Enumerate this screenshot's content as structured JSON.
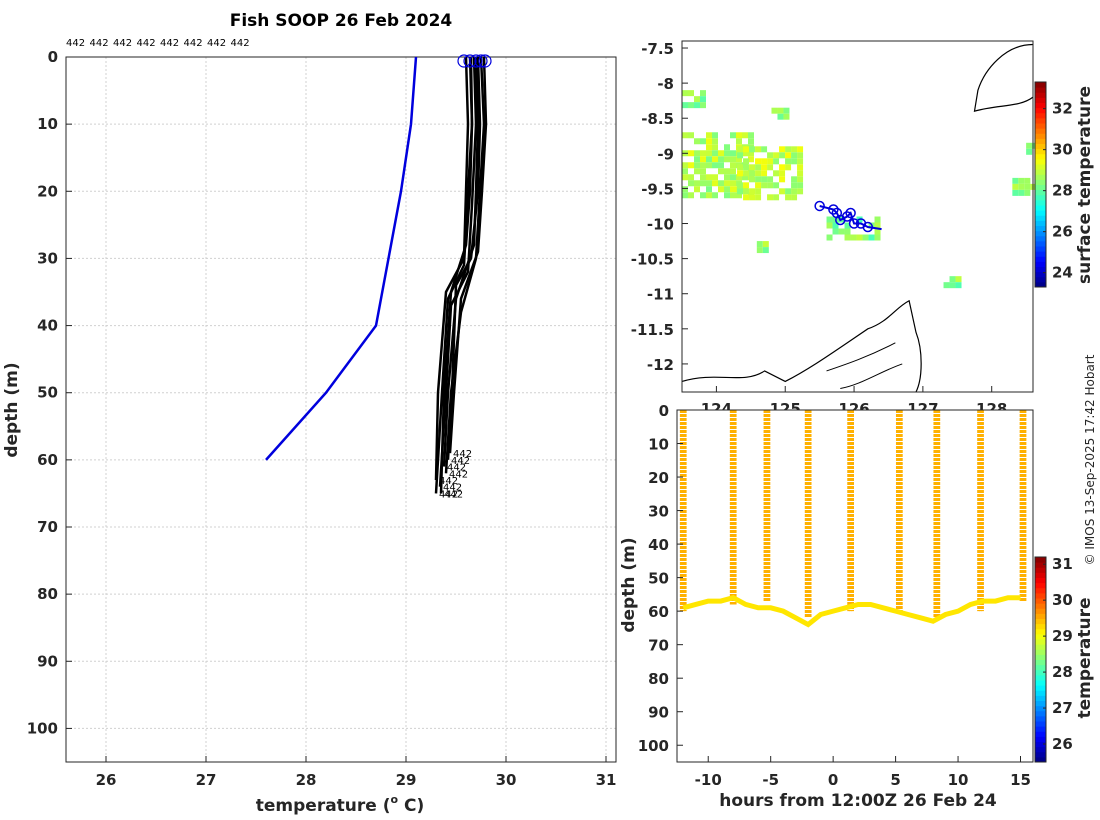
{
  "figure": {
    "title": "Fish SOOP 26 Feb 2024",
    "credit": "© IMOS 13-Sep-2025 17:42 Hobart"
  },
  "chart_data": [
    {
      "id": "profile",
      "type": "line",
      "xlabel": "temperature (o C)",
      "xlabel_main": "temperature (",
      "xlabel_sup": "o",
      "xlabel_end": " C)",
      "ylabel": "depth (m)",
      "xlim": [
        25.6,
        31.1
      ],
      "ylim": [
        0,
        105
      ],
      "xticks": [
        26,
        27,
        28,
        29,
        30,
        31
      ],
      "yticks": [
        0,
        10,
        20,
        30,
        40,
        50,
        60,
        70,
        80,
        90,
        100
      ],
      "grid": true,
      "top_labels": [
        "442",
        "442",
        "442",
        "442",
        "442",
        "442",
        "442",
        "442"
      ],
      "end_label": "442",
      "climatology": {
        "name": "climatology",
        "color": "#0000dd",
        "temp": [
          29.1,
          29.05,
          28.95,
          28.7,
          28.2,
          27.6
        ],
        "depth": [
          0,
          10,
          20,
          40,
          50,
          60
        ]
      },
      "profiles": {
        "color": "#000000",
        "series": [
          {
            "temp": [
              29.6,
              29.62,
              29.6,
              29.58,
              29.4,
              29.32,
              29.3
            ],
            "depth": [
              0,
              10,
              20,
              30,
              35,
              50,
              63
            ]
          },
          {
            "temp": [
              29.65,
              29.66,
              29.64,
              29.6,
              29.45,
              29.38,
              29.35
            ],
            "depth": [
              0,
              10,
              20,
              28,
              35,
              50,
              65
            ]
          },
          {
            "temp": [
              29.7,
              29.72,
              29.7,
              29.68,
              29.5,
              29.42,
              29.38
            ],
            "depth": [
              0,
              10,
              20,
              28,
              36,
              50,
              61
            ]
          },
          {
            "temp": [
              29.75,
              29.78,
              29.74,
              29.7,
              29.55,
              29.45,
              29.4
            ],
            "depth": [
              0,
              10,
              20,
              30,
              38,
              50,
              62
            ]
          },
          {
            "temp": [
              29.68,
              29.7,
              29.66,
              29.62,
              29.45,
              29.4,
              29.34
            ],
            "depth": [
              0,
              10,
              22,
              32,
              37,
              50,
              64
            ]
          },
          {
            "temp": [
              29.72,
              29.74,
              29.72,
              29.65,
              29.5,
              29.46,
              29.42
            ],
            "depth": [
              0,
              10,
              20,
              30,
              34,
              50,
              60
            ]
          },
          {
            "temp": [
              29.78,
              29.8,
              29.76,
              29.72,
              29.55,
              29.48,
              29.44
            ],
            "depth": [
              0,
              10,
              20,
              29,
              36,
              50,
              59
            ]
          },
          {
            "temp": [
              29.64,
              29.66,
              29.62,
              29.58,
              29.42,
              29.36,
              29.3
            ],
            "depth": [
              0,
              10,
              20,
              31,
              36,
              50,
              65
            ]
          }
        ]
      },
      "markers": {
        "color": "#0000dd",
        "temps": [
          29.58,
          29.64,
          29.7,
          29.75,
          29.79
        ]
      }
    },
    {
      "id": "map",
      "type": "heatmap",
      "xticks": [
        124,
        125,
        126,
        127,
        128
      ],
      "yticks": [
        -7.5,
        -8,
        -8.5,
        -9,
        -9.5,
        -10,
        -10.5,
        -11,
        -11.5,
        -12
      ],
      "xlim": [
        123.5,
        128.6
      ],
      "ylim": [
        -12.4,
        -7.4
      ],
      "colorbar": {
        "label": "surface temperature",
        "ticks": [
          24,
          26,
          28,
          30,
          32
        ],
        "range": [
          23.3,
          33.3
        ]
      },
      "track": {
        "color": "#0000dd",
        "lon": [
          125.5,
          125.7,
          125.75,
          125.8,
          125.9,
          125.95,
          126.0,
          126.1,
          126.2,
          126.4
        ],
        "lat": [
          -9.75,
          -9.8,
          -9.85,
          -9.95,
          -9.9,
          -9.85,
          -10.0,
          -10.0,
          -10.05,
          -10.08
        ]
      },
      "sst_patches": [
        {
          "lon0": 123.5,
          "lon1": 124.5,
          "lat0": -8.7,
          "lat1": -9.6,
          "value": 28.7
        },
        {
          "lon0": 124.3,
          "lon1": 125.2,
          "lat0": -8.9,
          "lat1": -9.6,
          "value": 28.8
        },
        {
          "lon0": 123.5,
          "lon1": 123.8,
          "lat0": -8.1,
          "lat1": -8.3,
          "value": 28.4
        },
        {
          "lon0": 124.8,
          "lon1": 125.0,
          "lat0": -8.35,
          "lat1": -8.45,
          "value": 28.3
        },
        {
          "lon0": 125.6,
          "lon1": 126.3,
          "lat0": -9.9,
          "lat1": -10.2,
          "value": 28.2
        },
        {
          "lon0": 124.5,
          "lon1": 124.7,
          "lat0": -10.25,
          "lat1": -10.4,
          "value": 28.3
        },
        {
          "lon0": 127.3,
          "lon1": 127.5,
          "lat0": -10.75,
          "lat1": -10.85,
          "value": 28.3
        },
        {
          "lon0": 128.3,
          "lon1": 128.6,
          "lat0": -9.35,
          "lat1": -9.6,
          "value": 28.2
        },
        {
          "lon0": 128.5,
          "lon1": 128.6,
          "lat0": -8.85,
          "lat1": -9.0,
          "value": 28.4
        }
      ]
    },
    {
      "id": "section",
      "type": "scatter",
      "xlabel": "hours from 12:00Z 26 Feb 24",
      "ylabel": "depth (m)",
      "xlim": [
        -12.5,
        16
      ],
      "ylim": [
        0,
        105
      ],
      "xticks": [
        -10,
        -5,
        0,
        5,
        10,
        15
      ],
      "yticks": [
        0,
        10,
        20,
        30,
        40,
        50,
        60,
        70,
        80,
        90,
        100
      ],
      "colorbar": {
        "label": "temperature",
        "ticks": [
          26,
          27,
          28,
          29,
          30,
          31
        ],
        "range": [
          25.5,
          31.2
        ]
      },
      "casts_hours": [
        -12,
        -8,
        -5.3,
        -2,
        1.4,
        5.3,
        8.3,
        11.8,
        15.2
      ],
      "cast_max_depth": [
        60,
        58,
        57,
        62,
        60,
        60,
        62,
        60,
        57
      ],
      "bottom_series": {
        "hours": [
          -12,
          -11,
          -10,
          -9,
          -8,
          -7,
          -6,
          -5,
          -4,
          -3,
          -2,
          -1,
          0,
          1,
          2,
          3,
          4,
          5,
          6,
          7,
          8,
          9,
          10,
          11,
          12,
          13,
          14,
          15
        ],
        "depth": [
          59,
          58,
          57,
          57,
          56,
          58,
          59,
          59,
          60,
          62,
          64,
          61,
          60,
          59,
          58,
          58,
          59,
          60,
          61,
          62,
          63,
          61,
          60,
          58,
          57,
          57,
          56,
          56
        ]
      }
    }
  ]
}
